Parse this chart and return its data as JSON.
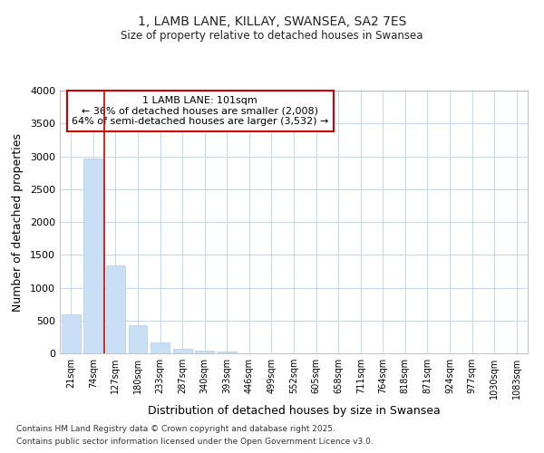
{
  "title_line1": "1, LAMB LANE, KILLAY, SWANSEA, SA2 7ES",
  "title_line2": "Size of property relative to detached houses in Swansea",
  "xlabel": "Distribution of detached houses by size in Swansea",
  "ylabel": "Number of detached properties",
  "bar_color": "#c8dff5",
  "bar_edge_color": "#b0cce8",
  "categories": [
    "21sqm",
    "74sqm",
    "127sqm",
    "180sqm",
    "233sqm",
    "287sqm",
    "340sqm",
    "393sqm",
    "446sqm",
    "499sqm",
    "552sqm",
    "605sqm",
    "658sqm",
    "711sqm",
    "764sqm",
    "818sqm",
    "871sqm",
    "924sqm",
    "977sqm",
    "1030sqm",
    "1083sqm"
  ],
  "values": [
    590,
    2970,
    1340,
    430,
    165,
    70,
    38,
    30,
    0,
    0,
    0,
    0,
    0,
    0,
    0,
    0,
    0,
    0,
    0,
    0,
    0
  ],
  "ylim": [
    0,
    4000
  ],
  "yticks": [
    0,
    500,
    1000,
    1500,
    2000,
    2500,
    3000,
    3500,
    4000
  ],
  "property_line_x": 1.5,
  "property_line_color": "#cc0000",
  "annotation_title": "1 LAMB LANE: 101sqm",
  "annotation_line1": "← 36% of detached houses are smaller (2,008)",
  "annotation_line2": "64% of semi-detached houses are larger (3,532) →",
  "annotation_box_color": "#cc0000",
  "background_color": "#ffffff",
  "grid_color": "#c8d8ee",
  "footnote1": "Contains HM Land Registry data © Crown copyright and database right 2025.",
  "footnote2": "Contains public sector information licensed under the Open Government Licence v3.0."
}
